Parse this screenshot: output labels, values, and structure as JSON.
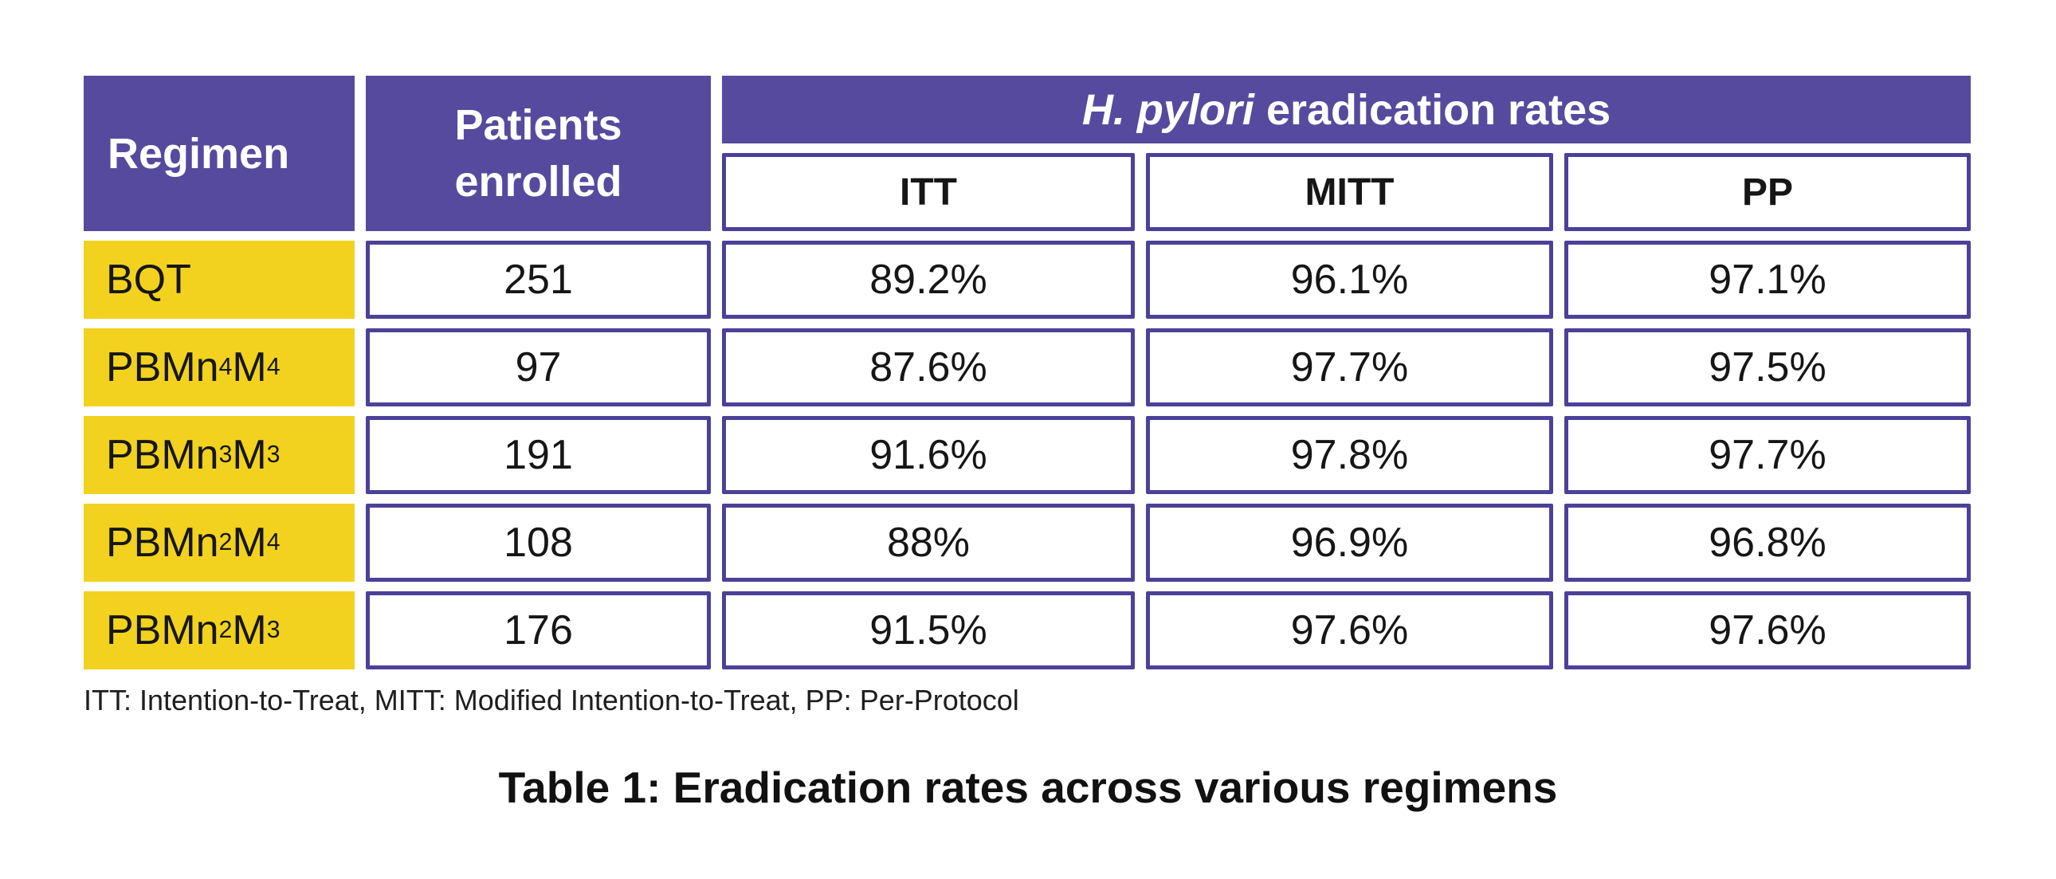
{
  "colors": {
    "header_purple": "#564A9E",
    "cell_border_purple": "#4C4198",
    "regimen_yellow": "#F2D21E",
    "header_text": "#FFFFFF",
    "body_text": "#1A1A1A"
  },
  "table": {
    "header": {
      "regimen": "Regimen",
      "patients": "Patients enrolled",
      "group_title_italic": "H. pylori",
      "group_title_rest": "eradication rates",
      "subcolumns": [
        "ITT",
        "MITT",
        "PP"
      ]
    },
    "rows": [
      {
        "regimen": "BQT",
        "patients": "251",
        "itt": "89.2%",
        "mitt": "96.1%",
        "pp": "97.1%"
      },
      {
        "regimen": "PBMn_4M_4",
        "patients": "97",
        "itt": "87.6%",
        "mitt": "97.7%",
        "pp": "97.5%"
      },
      {
        "regimen": "PBMn_3M_3",
        "patients": "191",
        "itt": "91.6%",
        "mitt": "97.8%",
        "pp": "97.7%"
      },
      {
        "regimen": "PBMn_2M_4",
        "patients": "108",
        "itt": "88%",
        "mitt": "96.9%",
        "pp": "96.8%"
      },
      {
        "regimen": "PBMn_2M_3",
        "patients": "176",
        "itt": "91.5%",
        "mitt": "97.6%",
        "pp": "97.6%"
      }
    ],
    "footnote": "ITT: Intention-to-Treat, MITT: Modified Intention-to-Treat, PP: Per-Protocol",
    "caption": "Table 1: Eradication rates across various regimens"
  },
  "chart_data": {
    "type": "table",
    "title": "Table 1: Eradication rates across various regimens",
    "column_group_header": "H. pylori eradication rates",
    "columns": [
      "Regimen",
      "Patients enrolled",
      "ITT",
      "MITT",
      "PP"
    ],
    "rows": [
      [
        "BQT",
        251,
        "89.2%",
        "96.1%",
        "97.1%"
      ],
      [
        "PBMn4M4",
        97,
        "87.6%",
        "97.7%",
        "97.5%"
      ],
      [
        "PBMn3M3",
        191,
        "91.6%",
        "97.8%",
        "97.7%"
      ],
      [
        "PBMn2M4",
        108,
        "88%",
        "96.9%",
        "96.8%"
      ],
      [
        "PBMn2M3",
        176,
        "91.5%",
        "97.6%",
        "97.6%"
      ]
    ],
    "footnote": "ITT: Intention-to-Treat, MITT: Modified Intention-to-Treat, PP: Per-Protocol"
  }
}
